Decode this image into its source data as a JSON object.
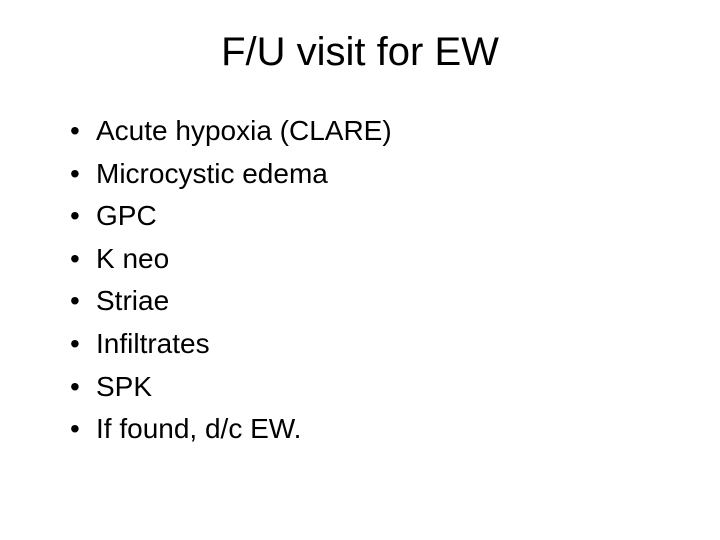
{
  "slide": {
    "title": "F/U visit for EW",
    "title_fontsize": 40,
    "title_color": "#000000",
    "background_color": "#ffffff",
    "bullets": [
      "Acute hypoxia (CLARE)",
      "Microcystic edema",
      "GPC",
      "K neo",
      "Striae",
      "Infiltrates",
      "SPK",
      "If found, d/c  EW."
    ],
    "bullet_fontsize": 28,
    "bullet_color": "#000000",
    "bullet_marker": "•",
    "font_family": "Arial"
  }
}
